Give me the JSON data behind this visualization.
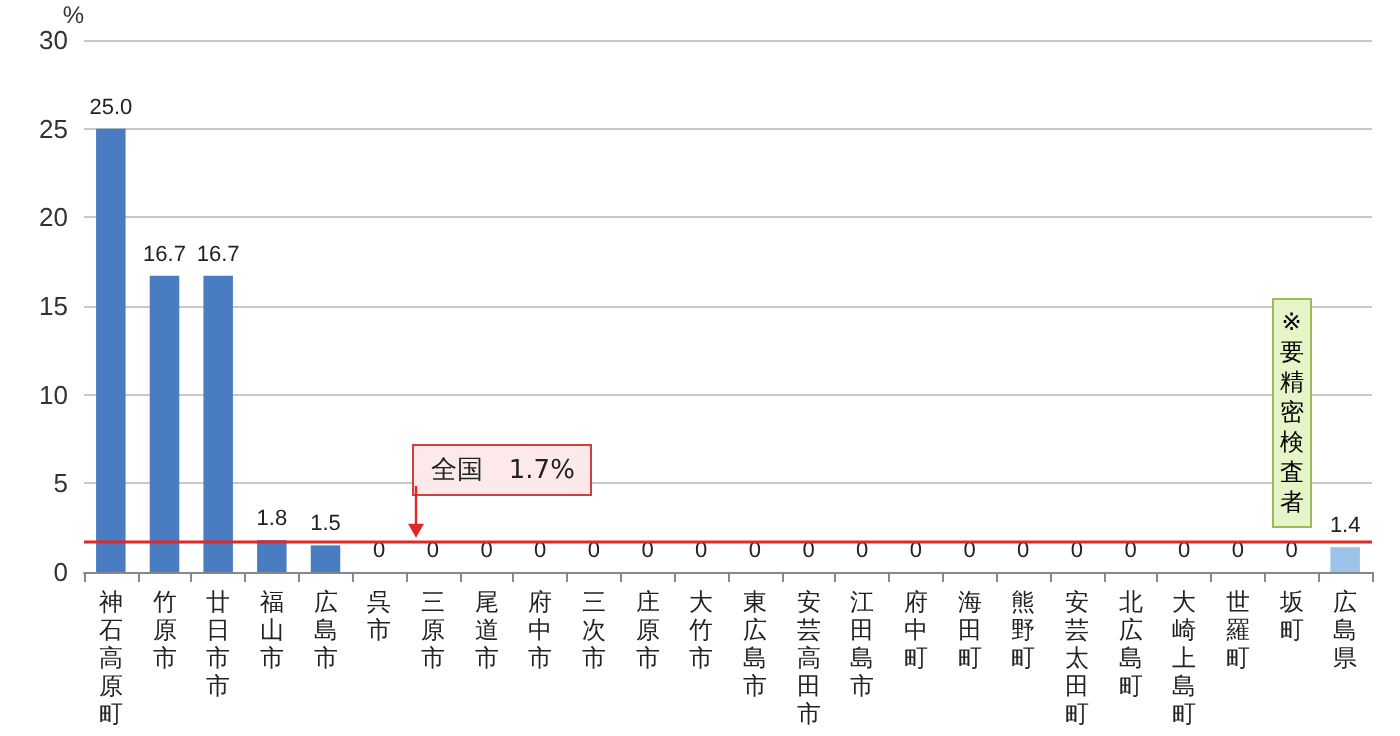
{
  "chart_data": {
    "type": "bar",
    "ylabel": "%",
    "categories": [
      "神石高原町",
      "竹原市",
      "廿日市市",
      "福山市",
      "広島市",
      "呉市",
      "三原市",
      "尾道市",
      "府中市",
      "三次市",
      "庄原市",
      "大竹市",
      "東広島市",
      "安芸高田市",
      "江田島市",
      "府中町",
      "海田町",
      "熊野町",
      "安芸太田町",
      "北広島町",
      "大崎上島町",
      "世羅町",
      "坂町",
      "広島県"
    ],
    "values": [
      25.0,
      16.7,
      16.7,
      1.8,
      1.5,
      0,
      0,
      0,
      0,
      0,
      0,
      0,
      0,
      0,
      0,
      0,
      0,
      0,
      0,
      0,
      0,
      0,
      0,
      1.4
    ],
    "value_labels": [
      "25.0",
      "16.7",
      "16.7",
      "1.8",
      "1.5",
      "0",
      "0",
      "0",
      "0",
      "0",
      "0",
      "0",
      "0",
      "0",
      "0",
      "0",
      "0",
      "0",
      "0",
      "0",
      "0",
      "0",
      "0",
      "1.4"
    ],
    "colors": [
      "#4a7cc2",
      "#4a7cc2",
      "#4a7cc2",
      "#4a7cc2",
      "#4a7cc2",
      "#4a7cc2",
      "#4a7cc2",
      "#4a7cc2",
      "#4a7cc2",
      "#4a7cc2",
      "#4a7cc2",
      "#4a7cc2",
      "#4a7cc2",
      "#4a7cc2",
      "#4a7cc2",
      "#4a7cc2",
      "#4a7cc2",
      "#4a7cc2",
      "#4a7cc2",
      "#4a7cc2",
      "#4a7cc2",
      "#4a7cc2",
      "#4a7cc2",
      "#9ec3ea"
    ],
    "ylim": [
      0,
      30
    ],
    "yticks": [
      0,
      5,
      10,
      15,
      20,
      25,
      30
    ],
    "grid": "y",
    "ref_lines": [
      {
        "axis": "y",
        "value": 1.7,
        "label": "全国　1.7%",
        "color": "#e02828"
      }
    ],
    "annotations": [
      {
        "text": "※要精密検査者",
        "x": "坂町",
        "y": 0
      }
    ]
  }
}
